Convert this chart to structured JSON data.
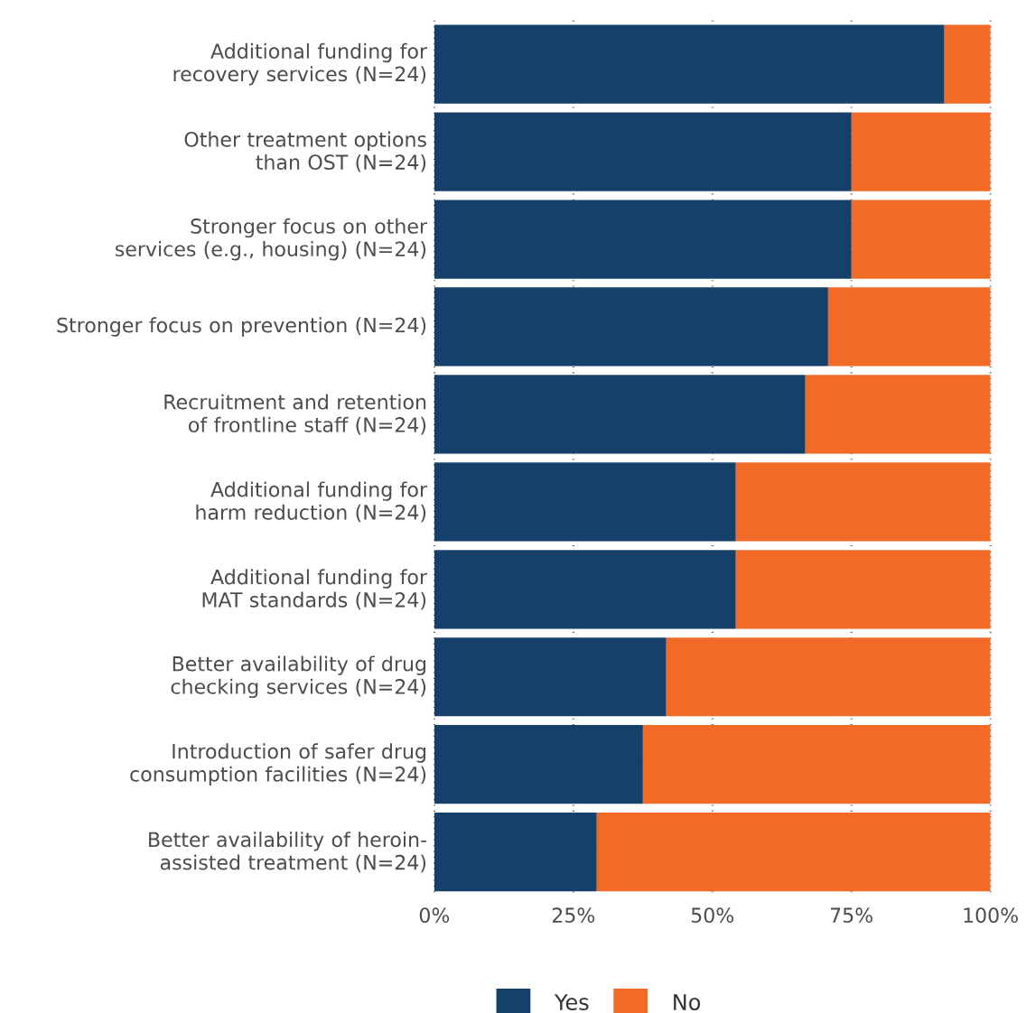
{
  "chart_data": {
    "type": "bar",
    "orientation": "horizontal",
    "stacked": true,
    "categories": [
      "Additional funding for recovery services (N=24)",
      "Other treatment options than OST (N=24)",
      "Stronger focus on other services (e.g., housing) (N=24)",
      "Stronger focus on prevention (N=24)",
      "Recruitment and retention of frontline staff (N=24)",
      "Additional funding for harm reduction (N=24)",
      "Additional funding for MAT standards (N=24)",
      "Better availability of drug checking services (N=24)",
      "Introduction of safer drug consumption facilities (N=24)",
      "Better availability of heroin-assisted treatment (N=24)"
    ],
    "series": [
      {
        "name": "Yes",
        "color": "#15406a",
        "values": [
          91.7,
          75,
          75,
          70.8,
          66.7,
          54.2,
          54.2,
          41.7,
          37.5,
          29.2
        ]
      },
      {
        "name": "No",
        "color": "#f26b26",
        "values": [
          8.3,
          25,
          25,
          29.2,
          33.3,
          45.8,
          45.8,
          58.3,
          62.5,
          70.8
        ]
      }
    ],
    "xlim": [
      0,
      100
    ],
    "xticks": [
      {
        "value": 0,
        "label": "0%"
      },
      {
        "value": 25,
        "label": "25%"
      },
      {
        "value": 50,
        "label": "50%"
      },
      {
        "value": 75,
        "label": "75%"
      },
      {
        "value": 100,
        "label": "100%"
      }
    ],
    "grid": true,
    "legend": "bottom"
  }
}
